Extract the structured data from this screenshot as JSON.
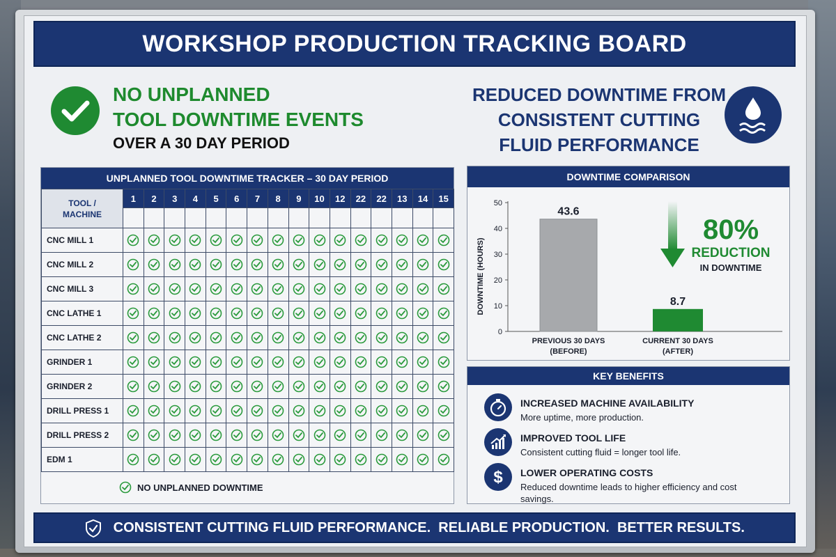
{
  "title": "WORKSHOP PRODUCTION TRACKING BOARD",
  "headline_left": {
    "line1": "NO UNPLANNED",
    "line2": "TOOL DOWNTIME EVENTS",
    "line3": "OVER A 30 DAY PERIOD",
    "icon": "check-circle-icon"
  },
  "headline_right": {
    "line1": "REDUCED DOWNTIME FROM",
    "line2": "CONSISTENT CUTTING",
    "line3": "FLUID PERFORMANCE",
    "icon": "water-drop-icon"
  },
  "tracker": {
    "title": "UNPLANNED TOOL DOWNTIME TRACKER – 30 DAY PERIOD",
    "tool_header_line1": "TOOL /",
    "tool_header_line2": "MACHINE",
    "days": [
      "1",
      "2",
      "3",
      "4",
      "5",
      "6",
      "7",
      "8",
      "9",
      "10",
      "12",
      "22",
      "22",
      "13",
      "14",
      "15"
    ],
    "tools": [
      "CNC MILL 1",
      "CNC MILL 2",
      "CNC MILL 3",
      "CNC LATHE 1",
      "CNC LATHE 2",
      "GRINDER 1",
      "GRINDER 2",
      "DRILL PRESS 1",
      "DRILL PRESS 2",
      "EDM 1"
    ],
    "cell_status": "no-unplanned-downtime",
    "legend": "NO UNPLANNED DOWNTIME",
    "check_color": "#2a9a3c"
  },
  "comparison": {
    "title": "DOWNTIME COMPARISON",
    "reduction_value": "80%",
    "reduction_label": "REDUCTION",
    "reduction_sub": "IN DOWNTIME",
    "bar_labels": [
      "43.6",
      "8.7"
    ],
    "cat_labels": [
      [
        "PREVIOUS 30 DAYS",
        "(BEFORE)"
      ],
      [
        "CURRENT 30 DAYS",
        "(AFTER)"
      ]
    ]
  },
  "chart_data": {
    "type": "bar",
    "categories": [
      "PREVIOUS 30 DAYS (BEFORE)",
      "CURRENT 30 DAYS (AFTER)"
    ],
    "values": [
      43.6,
      8.7
    ],
    "ylabel": "DOWNTIME (HOURS)",
    "ylim": [
      0,
      50
    ],
    "yticks": [
      0,
      10,
      20,
      30,
      40,
      50
    ],
    "bar_colors": [
      "#a7a9ac",
      "#1f8a32"
    ],
    "grid": false
  },
  "benefits": {
    "title": "KEY BENEFITS",
    "items": [
      {
        "icon": "stopwatch-icon",
        "title": "INCREASED MACHINE AVAILABILITY",
        "text": "More uptime, more production."
      },
      {
        "icon": "trend-up-chart-icon",
        "title": "IMPROVED TOOL LIFE",
        "text": "Consistent cutting fluid = longer tool life."
      },
      {
        "icon": "dollar-icon",
        "title": "LOWER OPERATING COSTS",
        "text": "Reduced downtime leads to higher efficiency and cost savings."
      }
    ]
  },
  "footer": {
    "text": "CONSISTENT CUTTING FLUID PERFORMANCE.  RELIABLE PRODUCTION.  BETTER RESULTS.",
    "icon": "shield-check-icon"
  },
  "colors": {
    "navy": "#1b3572",
    "green": "#1f8a32",
    "gray_bar": "#a7a9ac"
  }
}
